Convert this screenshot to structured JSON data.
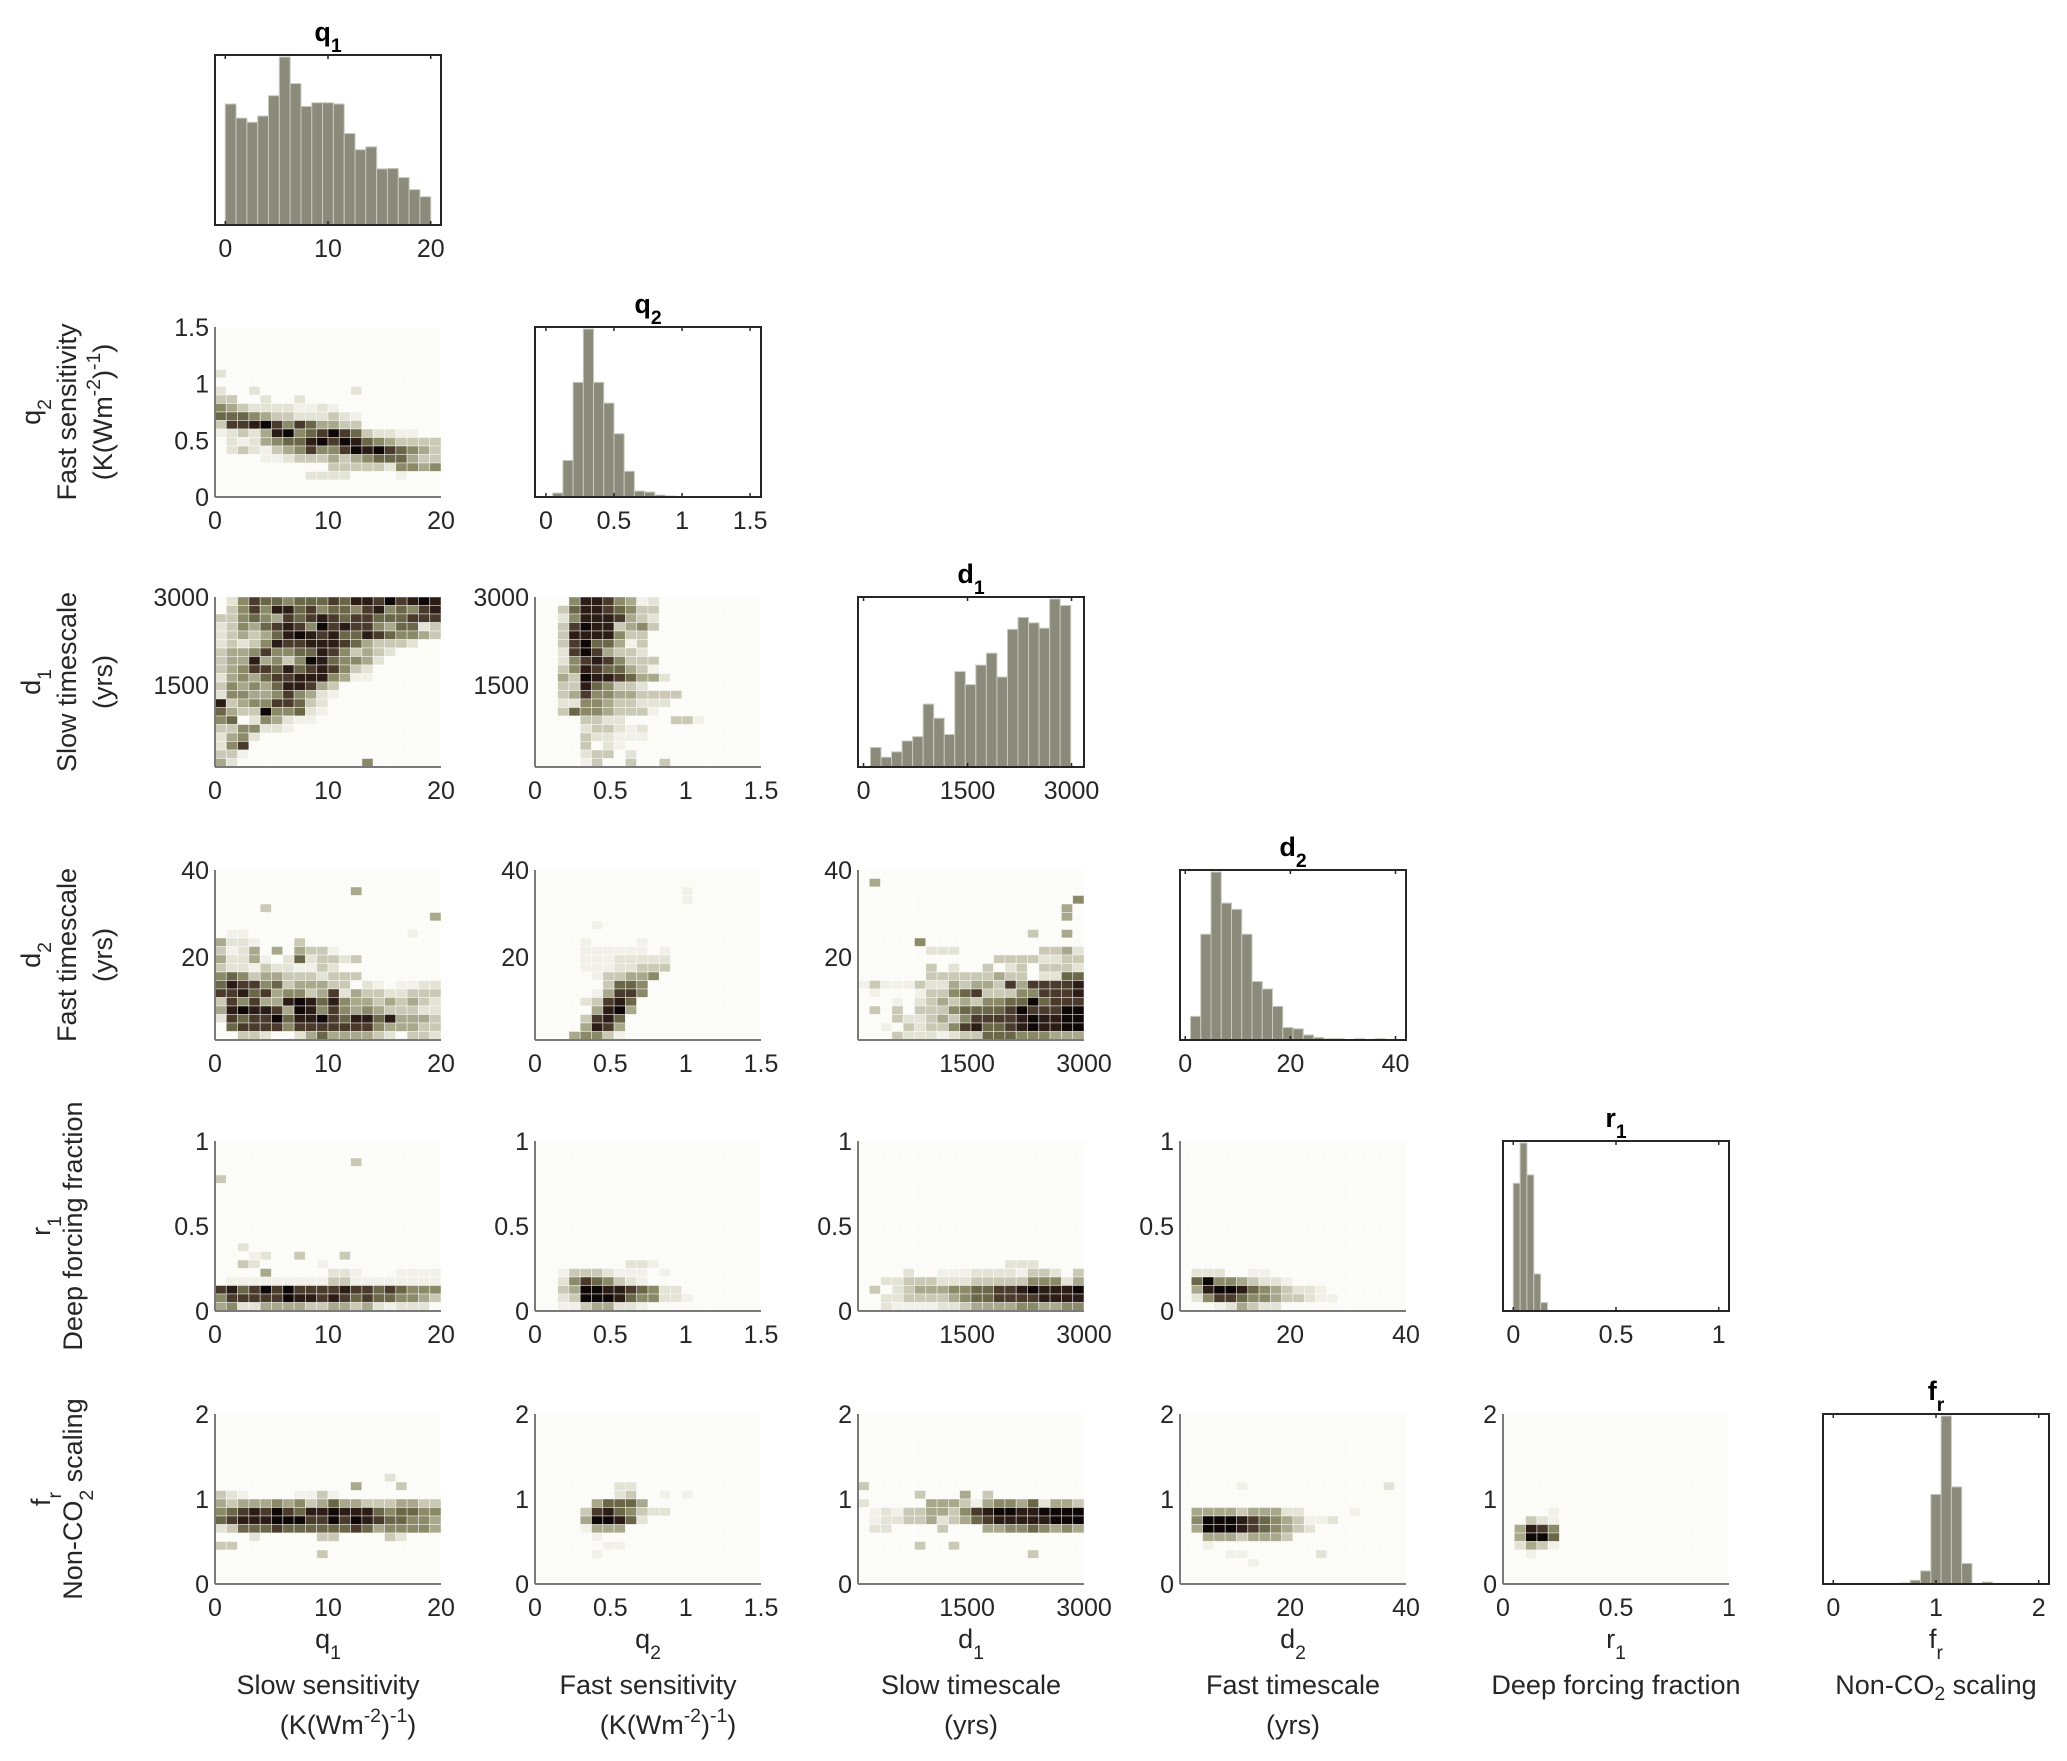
{
  "chart_data": {
    "type": "heatmap",
    "title": "",
    "layout": "lower-triangular corner plot (histograms on diagonal, 2D density heatmaps below)",
    "colors": {
      "histogram_bar": "#8b8b7b",
      "histogram_bar_edge": "#c9c9bd",
      "axis": "#262626",
      "heat_scale": [
        "#fbfbf7",
        "#f1f1ea",
        "#e3e3d6",
        "#c9c9b5",
        "#a8a88c",
        "#8a8a68",
        "#6a6648",
        "#4a3a2c",
        "#2c1c16",
        "#0d0706"
      ]
    },
    "variables": [
      {
        "key": "q1",
        "symbol": "q",
        "sub": "1",
        "name": "Slow sensitivity",
        "units": "(K(Wm",
        "units_sup1": "-2",
        "units_mid": ")",
        "units_sup2": "-1",
        "units_end": ")",
        "range": [
          0,
          20
        ],
        "hist_range": [
          -1,
          21
        ],
        "ticks": [
          "0",
          "10",
          "20"
        ],
        "tick_values": [
          0,
          10,
          20
        ],
        "heat_ticks": [
          0,
          10,
          20
        ]
      },
      {
        "key": "q2",
        "symbol": "q",
        "sub": "2",
        "name": "Fast sensitivity",
        "units": "(K(Wm",
        "units_sup1": "-2",
        "units_mid": ")",
        "units_sup2": "-1",
        "units_end": ")",
        "range": [
          0,
          1.5
        ],
        "hist_range": [
          -0.08,
          1.58
        ],
        "ticks": [
          "0",
          "0.5",
          "1",
          "1.5"
        ],
        "tick_values": [
          0,
          0.5,
          1,
          1.5
        ],
        "heat_ticks": [
          0,
          0.5,
          1,
          1.5
        ]
      },
      {
        "key": "d1",
        "symbol": "d",
        "sub": "1",
        "name": "Slow timescale",
        "units": "(yrs)",
        "range": [
          100,
          3000
        ],
        "hist_range": [
          -80,
          3180
        ],
        "ticks": [
          "0",
          "1500",
          "3000"
        ],
        "tick_values": [
          0,
          1500,
          3000
        ],
        "heat_ticks": [
          1500,
          3000
        ]
      },
      {
        "key": "d2",
        "symbol": "d",
        "sub": "2",
        "name": "Fast timescale",
        "units": "(yrs)",
        "range": [
          1,
          40
        ],
        "hist_range": [
          -1,
          42
        ],
        "ticks": [
          "0",
          "20",
          "40"
        ],
        "tick_values": [
          0,
          20,
          40
        ],
        "heat_ticks": [
          20,
          40
        ]
      },
      {
        "key": "r1",
        "symbol": "r",
        "sub": "1",
        "name": "Deep forcing fraction",
        "units": "",
        "range": [
          0,
          1
        ],
        "hist_range": [
          -0.05,
          1.05
        ],
        "ticks": [
          "0",
          "0.5",
          "1"
        ],
        "tick_values": [
          0,
          0.5,
          1
        ],
        "heat_ticks": [
          0,
          0.5,
          1
        ]
      },
      {
        "key": "fr",
        "symbol": "f",
        "sub": "r",
        "name": "Non-CO",
        "name_sub": "2",
        "name_end": " scaling",
        "units": "",
        "range": [
          0,
          2
        ],
        "hist_range": [
          -0.1,
          2.1
        ],
        "ticks": [
          "0",
          "1",
          "2"
        ],
        "tick_values": [
          0,
          1,
          2
        ],
        "heat_ticks": [
          0,
          1,
          2
        ]
      }
    ],
    "histograms": {
      "q1": {
        "bin_start": 0,
        "bin_width": 1.0526,
        "counts": [
          291,
          257,
          247,
          262,
          311,
          404,
          340,
          285,
          294,
          294,
          291,
          220,
          181,
          188,
          135,
          136,
          114,
          85,
          68
        ]
      },
      "q2": {
        "bin_start": 0.05,
        "bin_width": 0.075,
        "counts": [
          4,
          37,
          116,
          170,
          116,
          95,
          64,
          26,
          6,
          5,
          2,
          1,
          0,
          0,
          0,
          0,
          0,
          0,
          0,
          0
        ]
      },
      "d1": {
        "bin_start": 100,
        "bin_width": 152,
        "counts": [
          18,
          9,
          14,
          24,
          28,
          58,
          45,
          30,
          88,
          76,
          94,
          105,
          83,
          127,
          138,
          133,
          128,
          155,
          149
        ]
      },
      "d2": {
        "bin_start": 1,
        "bin_width": 1.95,
        "counts": [
          19,
          85,
          135,
          110,
          105,
          85,
          47,
          41,
          27,
          10,
          9,
          4,
          2,
          1,
          1,
          0,
          1,
          0,
          1,
          0
        ]
      },
      "r1": {
        "bin_start": 0,
        "bin_width": 0.0333,
        "counts": [
          76,
          100,
          81,
          22,
          5,
          0,
          0,
          0,
          0,
          0,
          0,
          0,
          0,
          0,
          0,
          0,
          0,
          0,
          0,
          0.3,
          0,
          0,
          0,
          0.3,
          0,
          0,
          0,
          0,
          0,
          0
        ]
      },
      "fr": {
        "bin_start": 0.65,
        "bin_width": 0.1,
        "counts": [
          0.5,
          2,
          7,
          48,
          90,
          52,
          11,
          0,
          1
        ]
      }
    },
    "heatmaps": [
      {
        "row": "q2",
        "col": "q1",
        "cells": [
          "00000000000000000000",
          "00000000000000000000",
          "00000000000000000000",
          "00000000000000000000",
          "00000000000000000000",
          "20000000000000000000",
          "00000000000000000000",
          "20020000000020000000",
          "33002002000000000000",
          "54322221121000000000",
          "66654332223210000000",
          "37789757644330000000",
          "12324895679763221100",
          "02124566897986543333",
          "02321345755798976543",
          "00001123334345666433",
          "00000000003333325545",
          "00000000222200001000",
          "00000000000000000000",
          "00000000000000000000"
        ]
      },
      {
        "row": "d1",
        "col": "q1",
        "cells": [
          "02576656667688797898",
          "03575886756657856578",
          "33565476787677666777",
          "23546787597877546623",
          "23434689878668765543",
          "23235877888764333200",
          "34457556687534320000",
          "34484535986554200000",
          "34577686787532000000",
          "24546778885411000000",
          "35454688743000000000",
          "25544575421000000000",
          "83455776320000000000",
          "64339556210000000000",
          "56025421100000000000",
          "33552210000000000000",
          "24520000000000000000",
          "25700000000000000000",
          "33100000000000000000",
          "42000000000005000000"
        ]
      },
      {
        "row": "d1",
        "col": "q2",
        "cells": [
          "00058875412000000000",
          "00368876533000000000",
          "00258887432000000000",
          "00379883453000000000",
          "00388885330000000000",
          "00379664130000000000",
          "00279743320000000000",
          "00257875333000000000",
          "00358766431000000000",
          "00439887644200000000",
          "00338653320000000000",
          "00347554433330000000",
          "00225543322200000000",
          "00365543331000000000",
          "00003322000033100000",
          "00002332120000000000",
          "00003221110000000000",
          "00003021000000000000",
          "00002330200000000000",
          "00001300300300000000"
        ]
      },
      {
        "row": "d2",
        "col": "q1",
        "cells": [
          "00000000000000000000",
          "00000000000000000000",
          "00000000000040000000",
          "00000000000000000000",
          "00003000000000000000",
          "00000000000000000004",
          "00000000000000000000",
          "01100000000000000100",
          "42210003000000000000",
          "31240404331000000000",
          "42241026233230000000",
          "32213221132000000000",
          "56534433323330000000",
          "68775634443302101122",
          "77867455347243322333",
          "37574489868544343432",
          "48988749857545433322",
          "27677968897688684443",
          "06777757777777544433",
          "00332002464444320332"
        ]
      },
      {
        "row": "d2",
        "col": "q2",
        "cells": [
          "00000000000000000000",
          "00000000000000000000",
          "00000000000001000000",
          "00000000000001000000",
          "00000000000000000000",
          "00000000000000000000",
          "00000100000000000000",
          "00000000000000000000",
          "00001000010000000000",
          "00001111110100000000",
          "00001112222200000000",
          "00001112233300000000",
          "00000133445000000000",
          "00000036650000000000",
          "00000147750000000000",
          "00002378600000000000",
          "00000489400000000000",
          "00003786000000000000",
          "00004874000000000000",
          "00045531000000000000"
        ]
      },
      {
        "row": "d2",
        "col": "d1",
        "cells": [
          "00000000000000000000",
          "04000000000000000000",
          "00000000000000000000",
          "00000000000000000005",
          "00000000000000000040",
          "00000000000000000040",
          "00000000000000000000",
          "00000000000000030040",
          "00000500000000000000",
          "00000022200000003342",
          "00000000000033332233",
          "00000030200302303332",
          "00000033333343302266",
          "13111322434437477778",
          "01000133567333557778",
          "00010234343556696777",
          "03030333566667977799",
          "00032234357777898899",
          "00103233578667898899",
          "00032221233666555444"
        ]
      },
      {
        "row": "r1",
        "col": "q1",
        "cells": [
          "00000000000000000000",
          "00000000000000000000",
          "00000000000000000000",
          "00000000000000000000",
          "00000000000030000000",
          "00000000000000000000",
          "30000000000000000000",
          "00000000000000000000",
          "00000000000000000000",
          "00000000000000000000",
          "00000000000000000000",
          "00000000000000000000",
          "00000000000000000000",
          "00000000000000000000",
          "00200000000000000000",
          "00012003000300000000",
          "00320000010000000000",
          "00004000002210001111",
          "01111111113311111111",
          "78679797777877676555",
          "57777798878767665543",
          "45224444334434212220"
        ]
      },
      {
        "row": "r1",
        "col": "q2",
        "cells": [
          "00000000000000000000",
          "00000000000000000000",
          "00000000000000000000",
          "00000000000000000000",
          "00000000000000000000",
          "00000000000000000000",
          "00000000000000000000",
          "00000000000000000000",
          "00000000000000000000",
          "00000000000000000000",
          "00000000000000000000",
          "00000000000000000000",
          "00000000000000000000",
          "00000000000000000000",
          "00000000000000000000",
          "00000000000000000000",
          "00000000221000000000",
          "00133321110100000000",
          "00257653210000000000",
          "00349988765220000000",
          "00239998655221000000",
          "00113442210000000000"
        ]
      },
      {
        "row": "r1",
        "col": "d1",
        "cells": [
          "00000000000000000000",
          "00000000000000000000",
          "00000000000000000000",
          "00000000000000000000",
          "00000000000000000000",
          "00000000000000000000",
          "00000000000000000000",
          "00000000000000000000",
          "00000000000000000000",
          "00000000000000000000",
          "00000000000000000000",
          "00000000000000000000",
          "00000000000000000000",
          "00000000000000000000",
          "00000000000000000000",
          "00000000000000000000",
          "00000000000002220000",
          "00002001112222133203",
          "00223332223333355524",
          "03023444556677898889",
          "00223333456677778888",
          "00211112234444554455"
        ]
      },
      {
        "row": "r1",
        "col": "d2",
        "cells": [
          "00000000000000000000",
          "00000000000000000000",
          "00000000000000000000",
          "00000000000000000000",
          "00000000000000000000",
          "00000000000000000000",
          "00000000000000000000",
          "00000000000000000000",
          "00000000000000000000",
          "00000000000000000000",
          "00000000000000000000",
          "00000000000000000000",
          "00000000000000000000",
          "00000000000000000000",
          "00000000000000000000",
          "00000000000000000000",
          "00000000000000000000",
          "02220011000000000000",
          "06955432210000000000",
          "04899865432210000000",
          "02577655433211000000",
          "00012432200000000000"
        ]
      },
      {
        "row": "fr",
        "col": "q1",
        "cells": [
          "00000000000000000000",
          "00000000000000000000",
          "00000000000000000000",
          "00000000000000000000",
          "00000000000000000000",
          "00000000000000000000",
          "00000000000000000000",
          "00000000000000020000",
          "00000000000040003000",
          "32100001131000000000",
          "43444545346443334433",
          "56787976889888656655",
          "67888999779798766554",
          "23666766666676455554",
          "00020000033000032000",
          "33000000000000000000",
          "00000000030000000000",
          "00000000000000000000",
          "00000000000000000000",
          "00000000000000000000"
        ]
      },
      {
        "row": "fr",
        "col": "q2",
        "cells": [
          "00000000000000000000",
          "00000000000000000000",
          "00000000000000000000",
          "00000000000000000000",
          "00000000000000000000",
          "00000000000000000000",
          "00000000000000000000",
          "00000000000000000000",
          "00000002200000000000",
          "00000002300101000000",
          "00000466640000000000",
          "00003786532200000000",
          "00004998620000000000",
          "00001444000000000000",
          "00000100000000000000",
          "00000011000000000000",
          "00000100000000000000",
          "00000000000000000000",
          "00000000000000000000",
          "00000000000000000000"
        ]
      },
      {
        "row": "fr",
        "col": "d1",
        "cells": [
          "00000000000000000000",
          "00000000000000000000",
          "00000000000000000000",
          "00000000000000000000",
          "00000000000000000000",
          "00000000000000000000",
          "00000000000000000000",
          "00000000000000000000",
          "30000000000000000000",
          "00000300040300000000",
          "20000044431455462443",
          "01213344357899889999",
          "01223342346788888999",
          "02200003000445565454",
          "00000000000000000000",
          "00000300300000000000",
          "00000000000000030000",
          "00000000000000000000",
          "00000000000000000000",
          "00000000000000000000"
        ]
      },
      {
        "row": "fr",
        "col": "d2",
        "cells": [
          "00000000000000000000",
          "00000000000000000000",
          "00000000000000000000",
          "00000000000000000000",
          "00000000000000000000",
          "00000000000000000000",
          "00000000000000000000",
          "00000000000000000000",
          "00000100000000000020",
          "00000000000000000000",
          "00000000000000000000",
          "04444344422000010000",
          "05999876543112000000",
          "04999876543200000000",
          "00444344430000000000",
          "00100000000000000000",
          "00001100000020000000",
          "00000010000000000000",
          "00000000000000000000",
          "00000000000000000000"
        ]
      },
      {
        "row": "fr",
        "col": "r1",
        "cells": [
          "00000000000000000000",
          "00000000000000000000",
          "00000000000000000000",
          "00000000000000000000",
          "00000000000000000000",
          "00000000000000000000",
          "00000000000000000000",
          "00000000000000000000",
          "00000000000000000000",
          "00000000000000000000",
          "00000000000000000000",
          "00001000000000000000",
          "00321000000000000000",
          "04875000000000000000",
          "04996000000000000000",
          "02431000000000000000",
          "00100000000000000000",
          "00000000000000000000",
          "00000000000000000000",
          "00000000000000000000"
        ]
      }
    ]
  }
}
